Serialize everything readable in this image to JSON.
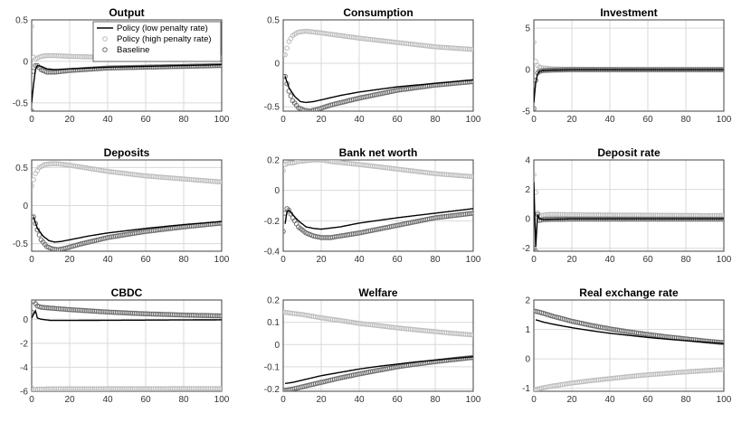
{
  "figure": {
    "colors": {
      "low": "#000000",
      "high": "#bdbdbd",
      "base": "#6e6e6e",
      "grid": "#d9d9d9",
      "axis": "#404040"
    },
    "legend": [
      "Policy (low penalty rate)",
      "Policy (high penalty rate)",
      "Baseline"
    ]
  },
  "chart_data": [
    {
      "type": "line",
      "title": "Output",
      "xlim": [
        0,
        100
      ],
      "ylim": [
        -0.6,
        0.5
      ],
      "xticks": [
        "0",
        "20",
        "40",
        "60",
        "80",
        "100"
      ],
      "yticks": [
        "-0.5",
        "0",
        "0.5"
      ],
      "ytick_values": [
        -0.5,
        0,
        0.5
      ],
      "legend_location": "top-right",
      "series": [
        {
          "name": "Policy (low penalty rate)",
          "style": "line",
          "x": [
            0,
            1,
            2,
            3,
            5,
            8,
            12,
            20,
            40,
            60,
            80,
            100
          ],
          "y": [
            -0.5,
            -0.28,
            -0.1,
            -0.05,
            -0.06,
            -0.09,
            -0.1,
            -0.09,
            -0.07,
            -0.06,
            -0.05,
            -0.04
          ]
        },
        {
          "name": "Policy (high penalty rate)",
          "style": "markers",
          "x": [
            0,
            1,
            2,
            3,
            5,
            8,
            12,
            20,
            40,
            60,
            80,
            100
          ],
          "y": [
            0.42,
            0.05,
            0.03,
            0.04,
            0.06,
            0.07,
            0.07,
            0.06,
            0.05,
            0.05,
            0.04,
            0.04
          ]
        },
        {
          "name": "Baseline",
          "style": "markers",
          "x": [
            0,
            1,
            2,
            3,
            5,
            8,
            12,
            20,
            40,
            60,
            80,
            100
          ],
          "y": [
            -0.6,
            -0.12,
            -0.05,
            -0.05,
            -0.1,
            -0.13,
            -0.13,
            -0.11,
            -0.08,
            -0.07,
            -0.06,
            -0.05
          ]
        }
      ]
    },
    {
      "type": "line",
      "title": "Consumption",
      "xlim": [
        0,
        100
      ],
      "ylim": [
        -0.55,
        0.5
      ],
      "xticks": [
        "0",
        "20",
        "40",
        "60",
        "80",
        "100"
      ],
      "yticks": [
        "-0.5",
        "0",
        "0.5"
      ],
      "ytick_values": [
        -0.5,
        0,
        0.5
      ],
      "series": [
        {
          "name": "Policy (low penalty rate)",
          "style": "line",
          "x": [
            1,
            3,
            6,
            9,
            12,
            16,
            20,
            30,
            40,
            60,
            80,
            100
          ],
          "y": [
            -0.15,
            -0.28,
            -0.38,
            -0.44,
            -0.45,
            -0.44,
            -0.42,
            -0.37,
            -0.33,
            -0.27,
            -0.23,
            -0.19
          ]
        },
        {
          "name": "Policy (high penalty rate)",
          "style": "markers",
          "x": [
            1,
            3,
            5,
            8,
            12,
            16,
            20,
            30,
            40,
            60,
            80,
            100
          ],
          "y": [
            0.1,
            0.25,
            0.32,
            0.36,
            0.37,
            0.36,
            0.35,
            0.32,
            0.29,
            0.24,
            0.19,
            0.16
          ]
        },
        {
          "name": "Baseline",
          "style": "markers",
          "x": [
            1,
            3,
            5,
            8,
            11,
            14,
            18,
            25,
            40,
            60,
            80,
            100
          ],
          "y": [
            -0.15,
            -0.32,
            -0.43,
            -0.51,
            -0.54,
            -0.55,
            -0.53,
            -0.48,
            -0.4,
            -0.31,
            -0.25,
            -0.21
          ]
        }
      ]
    },
    {
      "type": "line",
      "title": "Investment",
      "xlim": [
        0,
        100
      ],
      "ylim": [
        -5,
        6
      ],
      "xticks": [
        "0",
        "20",
        "40",
        "60",
        "80",
        "100"
      ],
      "yticks": [
        "-5",
        "0",
        "5"
      ],
      "ytick_values": [
        -5,
        0,
        5
      ],
      "series": [
        {
          "name": "Policy (low penalty rate)",
          "style": "line",
          "x": [
            0,
            1,
            2,
            3,
            5,
            10,
            20,
            50,
            100
          ],
          "y": [
            -4,
            -1.5,
            -0.5,
            -0.2,
            -0.1,
            -0.05,
            0,
            0,
            0
          ]
        },
        {
          "name": "Policy (high penalty rate)",
          "style": "markers",
          "x": [
            0,
            1,
            2,
            3,
            5,
            10,
            20,
            50,
            100
          ],
          "y": [
            3.3,
            1,
            0.5,
            0.3,
            0.2,
            0.1,
            0.05,
            0.02,
            0.02
          ]
        },
        {
          "name": "Baseline",
          "style": "markers",
          "x": [
            0,
            1,
            2,
            3,
            5,
            10,
            20,
            50,
            100
          ],
          "y": [
            -4.7,
            -1.3,
            -0.4,
            -0.2,
            -0.1,
            -0.05,
            0,
            0,
            0
          ]
        }
      ]
    },
    {
      "type": "line",
      "title": "Deposits",
      "xlim": [
        0,
        100
      ],
      "ylim": [
        -0.6,
        0.6
      ],
      "xticks": [
        "0",
        "20",
        "40",
        "60",
        "80",
        "100"
      ],
      "yticks": [
        "-0.5",
        "0",
        "0.5"
      ],
      "ytick_values": [
        -0.5,
        0,
        0.5
      ],
      "series": [
        {
          "name": "Policy (low penalty rate)",
          "style": "line",
          "x": [
            1,
            3,
            6,
            9,
            12,
            16,
            20,
            30,
            40,
            60,
            80,
            100
          ],
          "y": [
            -0.15,
            -0.3,
            -0.4,
            -0.46,
            -0.48,
            -0.47,
            -0.45,
            -0.4,
            -0.36,
            -0.3,
            -0.25,
            -0.21
          ]
        },
        {
          "name": "Policy (high penalty rate)",
          "style": "markers",
          "x": [
            0,
            2,
            4,
            7,
            10,
            14,
            20,
            30,
            40,
            60,
            80,
            100
          ],
          "y": [
            0.26,
            0.42,
            0.5,
            0.54,
            0.55,
            0.55,
            0.53,
            0.49,
            0.45,
            0.39,
            0.35,
            0.31
          ]
        },
        {
          "name": "Baseline",
          "style": "markers",
          "x": [
            1,
            3,
            5,
            8,
            11,
            14,
            18,
            25,
            40,
            60,
            80,
            100
          ],
          "y": [
            -0.15,
            -0.32,
            -0.45,
            -0.54,
            -0.57,
            -0.58,
            -0.56,
            -0.51,
            -0.42,
            -0.34,
            -0.28,
            -0.23
          ]
        }
      ]
    },
    {
      "type": "line",
      "title": "Bank net worth",
      "xlim": [
        0,
        100
      ],
      "ylim": [
        -0.4,
        0.2
      ],
      "xticks": [
        "0",
        "20",
        "40",
        "60",
        "80",
        "100"
      ],
      "yticks": [
        "-0.4",
        "-0.2",
        "0",
        "0.2"
      ],
      "ytick_values": [
        -0.4,
        -0.2,
        0,
        0.2
      ],
      "series": [
        {
          "name": "Policy (low penalty rate)",
          "style": "line",
          "x": [
            1,
            2,
            3,
            5,
            8,
            12,
            16,
            20,
            30,
            40,
            60,
            80,
            100
          ],
          "y": [
            -0.22,
            -0.14,
            -0.13,
            -0.16,
            -0.2,
            -0.24,
            -0.25,
            -0.255,
            -0.24,
            -0.215,
            -0.18,
            -0.15,
            -0.12
          ]
        },
        {
          "name": "Policy (high penalty rate)",
          "style": "markers",
          "x": [
            0,
            1,
            3,
            5,
            8,
            12,
            16,
            20,
            25,
            40,
            60,
            80,
            100
          ],
          "y": [
            0.13,
            0.17,
            0.18,
            0.18,
            0.19,
            0.195,
            0.2,
            0.2,
            0.19,
            0.17,
            0.14,
            0.11,
            0.09
          ]
        },
        {
          "name": "Baseline",
          "style": "markers",
          "x": [
            0,
            1,
            2,
            3,
            5,
            8,
            12,
            16,
            20,
            25,
            40,
            60,
            80,
            100
          ],
          "y": [
            -0.27,
            -0.15,
            -0.12,
            -0.13,
            -0.18,
            -0.24,
            -0.28,
            -0.3,
            -0.31,
            -0.31,
            -0.28,
            -0.23,
            -0.18,
            -0.15
          ]
        }
      ]
    },
    {
      "type": "line",
      "title": "Deposit rate",
      "xlim": [
        0,
        100
      ],
      "ylim": [
        -2.2,
        4
      ],
      "xticks": [
        "0",
        "20",
        "40",
        "60",
        "80",
        "100"
      ],
      "yticks": [
        "-2",
        "0",
        "2",
        "4"
      ],
      "ytick_values": [
        -2,
        0,
        2,
        4
      ],
      "series": [
        {
          "name": "Policy (low penalty rate)",
          "style": "line",
          "x": [
            0,
            1,
            2,
            3,
            5,
            10,
            20,
            50,
            100
          ],
          "y": [
            2.5,
            -1.9,
            0.3,
            0,
            -0.05,
            -0.03,
            0,
            0,
            0
          ]
        },
        {
          "name": "Policy (high penalty rate)",
          "style": "markers",
          "x": [
            0,
            1,
            2,
            3,
            5,
            8,
            12,
            20,
            50,
            100
          ],
          "y": [
            3,
            1.8,
            0.4,
            0.2,
            0.25,
            0.3,
            0.3,
            0.28,
            0.25,
            0.22
          ]
        },
        {
          "name": "Baseline",
          "style": "markers",
          "x": [
            0,
            1,
            2,
            3,
            5,
            10,
            20,
            50,
            100
          ],
          "y": [
            -2,
            -2.2,
            0.3,
            -0.1,
            -0.05,
            -0.03,
            -0.02,
            -0.02,
            -0.02
          ]
        }
      ]
    },
    {
      "type": "line",
      "title": "CBDC",
      "xlim": [
        0,
        100
      ],
      "ylim": [
        -6,
        1.6
      ],
      "xticks": [
        "0",
        "20",
        "40",
        "60",
        "80",
        "100"
      ],
      "yticks": [
        "-6",
        "-4",
        "-2",
        "0"
      ],
      "ytick_values": [
        -6,
        -4,
        -2,
        0
      ],
      "series": [
        {
          "name": "Policy (low penalty rate)",
          "style": "line",
          "x": [
            0,
            1,
            2,
            3,
            5,
            10,
            20,
            50,
            100
          ],
          "y": [
            0.1,
            0.4,
            0.7,
            0.1,
            0,
            -0.1,
            -0.1,
            -0.08,
            -0.05
          ]
        },
        {
          "name": "Policy (high penalty rate)",
          "style": "markers",
          "x": [
            0,
            1,
            2,
            3,
            5,
            10,
            20,
            50,
            100
          ],
          "y": [
            -5.7,
            -5.85,
            -5.85,
            -5.82,
            -5.82,
            -5.8,
            -5.8,
            -5.79,
            -5.78
          ]
        },
        {
          "name": "Baseline",
          "style": "markers",
          "x": [
            0,
            1,
            2,
            3,
            5,
            8,
            12,
            20,
            30,
            40,
            60,
            80,
            100
          ],
          "y": [
            0.6,
            1.5,
            1.3,
            1.1,
            1,
            0.95,
            0.9,
            0.8,
            0.7,
            0.6,
            0.45,
            0.35,
            0.28
          ]
        }
      ]
    },
    {
      "type": "line",
      "title": "Welfare",
      "xlim": [
        0,
        100
      ],
      "ylim": [
        -0.21,
        0.2
      ],
      "xticks": [
        "0",
        "20",
        "40",
        "60",
        "80",
        "100"
      ],
      "yticks": [
        "-0.2",
        "-0.1",
        "0",
        "0.1",
        "0.2"
      ],
      "ytick_values": [
        -0.2,
        -0.1,
        0,
        0.1,
        0.2
      ],
      "series": [
        {
          "name": "Policy (low penalty rate)",
          "style": "line",
          "x": [
            1,
            5,
            10,
            20,
            30,
            40,
            50,
            60,
            70,
            80,
            90,
            100
          ],
          "y": [
            -0.175,
            -0.17,
            -0.16,
            -0.14,
            -0.125,
            -0.11,
            -0.098,
            -0.088,
            -0.078,
            -0.07,
            -0.062,
            -0.055
          ]
        },
        {
          "name": "Policy (high penalty rate)",
          "style": "markers",
          "x": [
            1,
            5,
            10,
            20,
            30,
            40,
            50,
            60,
            70,
            80,
            90,
            100
          ],
          "y": [
            0.145,
            0.14,
            0.135,
            0.12,
            0.108,
            0.095,
            0.085,
            0.075,
            0.066,
            0.058,
            0.05,
            0.043
          ]
        },
        {
          "name": "Baseline",
          "style": "markers",
          "x": [
            1,
            5,
            10,
            20,
            30,
            40,
            50,
            60,
            70,
            80,
            90,
            100
          ],
          "y": [
            -0.205,
            -0.2,
            -0.19,
            -0.17,
            -0.15,
            -0.132,
            -0.116,
            -0.1,
            -0.088,
            -0.077,
            -0.067,
            -0.058
          ]
        }
      ]
    },
    {
      "type": "line",
      "title": "Real exchange rate",
      "xlim": [
        0,
        100
      ],
      "ylim": [
        -1.1,
        2
      ],
      "xticks": [
        "0",
        "20",
        "40",
        "60",
        "80",
        "100"
      ],
      "yticks": [
        "-1",
        "0",
        "1",
        "2"
      ],
      "ytick_values": [
        -1,
        0,
        1,
        2
      ],
      "series": [
        {
          "name": "Policy (low penalty rate)",
          "style": "line",
          "x": [
            1,
            5,
            10,
            20,
            30,
            40,
            50,
            60,
            70,
            80,
            90,
            100
          ],
          "y": [
            1.33,
            1.25,
            1.18,
            1.06,
            0.96,
            0.87,
            0.8,
            0.73,
            0.67,
            0.62,
            0.57,
            0.52
          ]
        },
        {
          "name": "Policy (high penalty rate)",
          "style": "markers",
          "x": [
            0,
            2,
            5,
            10,
            20,
            30,
            40,
            50,
            60,
            70,
            80,
            90,
            100
          ],
          "y": [
            -1.05,
            -1.02,
            -0.98,
            -0.92,
            -0.82,
            -0.74,
            -0.67,
            -0.6,
            -0.54,
            -0.49,
            -0.44,
            -0.4,
            -0.36
          ]
        },
        {
          "name": "Baseline",
          "style": "markers",
          "x": [
            1,
            5,
            10,
            20,
            30,
            40,
            50,
            60,
            70,
            80,
            90,
            100
          ],
          "y": [
            1.62,
            1.55,
            1.45,
            1.28,
            1.14,
            1.02,
            0.92,
            0.83,
            0.75,
            0.68,
            0.61,
            0.55
          ]
        }
      ]
    }
  ]
}
